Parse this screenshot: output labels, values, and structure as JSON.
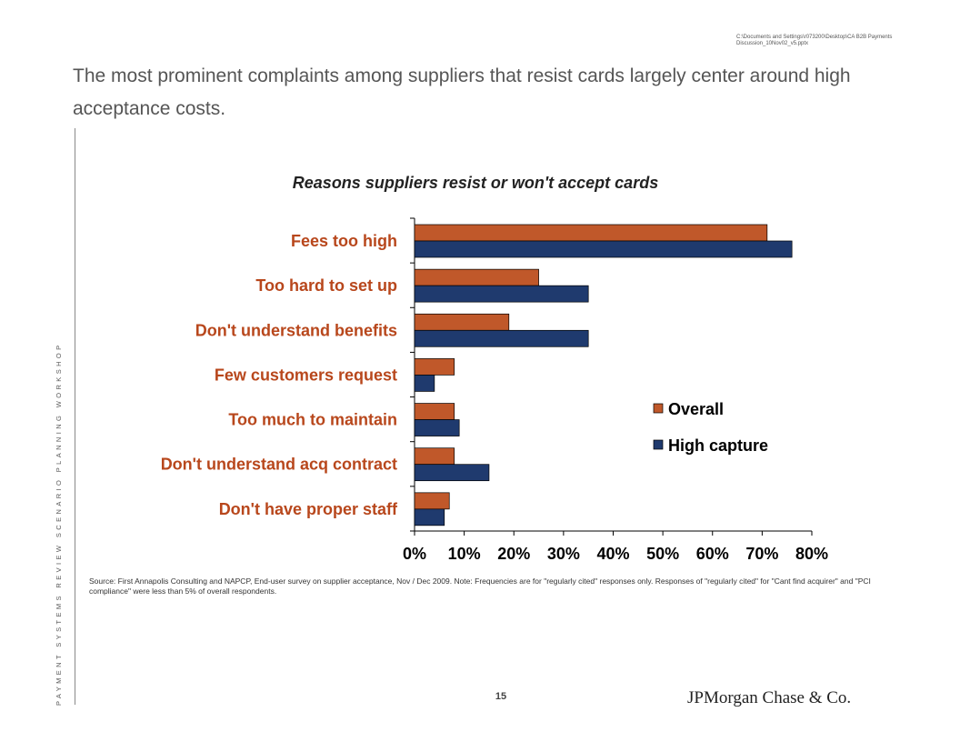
{
  "header": {
    "file_path": "C:\\Documents and Settings\\r073200\\Desktop\\CA B2B Payments Discussion_10Nov02_v5.pptx",
    "title": "The most prominent complaints  among suppliers that resist cards largely center around high acceptance costs."
  },
  "sidebar": {
    "text": "PAYMENT SYSTEMS REVIEW SCENARIO PLANNING WORKSHOP"
  },
  "chart_data": {
    "type": "bar",
    "orientation": "horizontal",
    "title": "Reasons suppliers resist or won't accept cards",
    "categories": [
      "Fees too high",
      "Too hard to set up",
      "Don't understand benefits",
      "Few customers request",
      "Too much to maintain",
      "Don't understand acq contract",
      "Don't have proper staff"
    ],
    "series": [
      {
        "name": "Overall",
        "color": "#c0582a",
        "values": [
          71,
          25,
          19,
          8,
          8,
          8,
          7
        ]
      },
      {
        "name": "High capture",
        "color": "#1f3a6e",
        "values": [
          76,
          35,
          35,
          4,
          9,
          15,
          6
        ]
      }
    ],
    "xlim": [
      0,
      80
    ],
    "x_ticks": [
      "0%",
      "10%",
      "20%",
      "30%",
      "40%",
      "50%",
      "60%",
      "70%",
      "80%"
    ],
    "category_label_color": "#b8471c",
    "legend_position": "right-center",
    "grid": false
  },
  "footer": {
    "source": "Source:  First Annapolis Consulting and NAPCP, End-user survey on supplier acceptance, Nov / Dec 2009.  Note:  Frequencies are for \"regularly cited\" responses only.  Responses of \"regularly cited\" for \"Cant find acquirer\" and \"PCI compliance\" were less than 5% of overall respondents.",
    "page_number": "15",
    "logo": "JPMorgan Chase & Co."
  }
}
